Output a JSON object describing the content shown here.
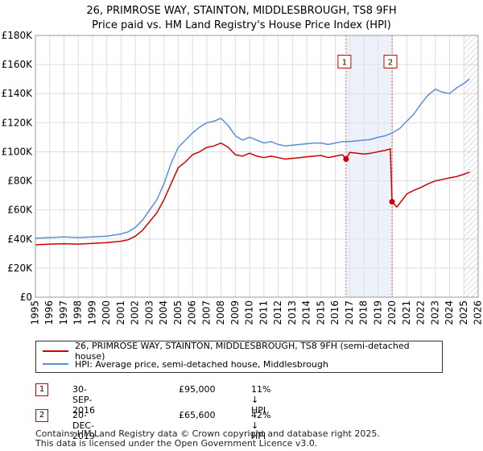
{
  "chart_data": {
    "type": "line",
    "title": "26, PRIMROSE WAY, STAINTON, MIDDLESBROUGH, TS8 9FH",
    "subtitle": "Price paid vs. HM Land Registry's House Price Index (HPI)",
    "xlabel": "",
    "ylabel": "",
    "xlim": [
      1995,
      2026
    ],
    "ylim": [
      0,
      180000
    ],
    "y_ticks": [
      0,
      20000,
      40000,
      60000,
      80000,
      100000,
      120000,
      140000,
      160000,
      180000
    ],
    "y_tick_labels": [
      "£0",
      "£20K",
      "£40K",
      "£60K",
      "£80K",
      "£100K",
      "£120K",
      "£140K",
      "£160K",
      "£180K"
    ],
    "x_ticks": [
      1995,
      1996,
      1997,
      1998,
      1999,
      2000,
      2001,
      2002,
      2003,
      2004,
      2005,
      2006,
      2007,
      2008,
      2009,
      2010,
      2011,
      2012,
      2013,
      2014,
      2015,
      2016,
      2017,
      2018,
      2019,
      2020,
      2021,
      2022,
      2023,
      2024,
      2025,
      2026
    ],
    "x_tick_labels": [
      "1995",
      "1996",
      "1997",
      "1998",
      "1999",
      "2000",
      "2001",
      "2002",
      "2003",
      "2004",
      "2005",
      "2006",
      "2007",
      "2008",
      "2009",
      "2010",
      "2011",
      "2012",
      "2013",
      "2014",
      "2015",
      "2016",
      "2017",
      "2018",
      "2019",
      "2020",
      "2021",
      "2022",
      "2023",
      "2024",
      "2025",
      "2026"
    ],
    "grid": true,
    "future_hatch_from": 2025.0,
    "shaded_span": [
      2016.75,
      2019.97
    ],
    "series": [
      {
        "name": "26, PRIMROSE WAY, STAINTON, MIDDLESBROUGH, TS8 9FH (semi-detached house)",
        "color": "#cc0000",
        "x": [
          1995.0,
          1996.0,
          1997.0,
          1998.0,
          1999.0,
          2000.0,
          2001.0,
          2001.5,
          2002.0,
          2002.5,
          2003.0,
          2003.5,
          2004.0,
          2004.5,
          2005.0,
          2005.5,
          2006.0,
          2006.5,
          2007.0,
          2007.5,
          2008.0,
          2008.5,
          2009.0,
          2009.5,
          2010.0,
          2010.5,
          2011.0,
          2011.5,
          2012.0,
          2012.5,
          2013.0,
          2013.5,
          2014.0,
          2014.5,
          2015.0,
          2015.5,
          2016.0,
          2016.5,
          2016.75,
          2017.0,
          2017.5,
          2018.0,
          2018.5,
          2019.0,
          2019.5,
          2019.85,
          2019.97,
          2020.3,
          2020.7,
          2021.0,
          2021.5,
          2022.0,
          2022.5,
          2023.0,
          2023.5,
          2024.0,
          2024.5,
          2025.0,
          2025.4
        ],
        "values": [
          36000,
          36500,
          36800,
          36500,
          37000,
          37500,
          38500,
          39500,
          42000,
          46000,
          52000,
          58000,
          67000,
          78000,
          89000,
          93000,
          98000,
          100000,
          103000,
          104000,
          106000,
          103000,
          98000,
          97000,
          99000,
          97000,
          96000,
          97000,
          96000,
          95000,
          95500,
          96000,
          96500,
          97000,
          97500,
          96000,
          97000,
          98000,
          95000,
          99500,
          99000,
          98500,
          99000,
          100000,
          101000,
          102000,
          65600,
          62000,
          67000,
          71000,
          73500,
          75500,
          78000,
          80000,
          81000,
          82000,
          83000,
          84500,
          86000
        ]
      },
      {
        "name": "HPI: Average price, semi-detached house, Middlesbrough",
        "color": "#5b8fd6",
        "x": [
          1995.0,
          1996.0,
          1997.0,
          1998.0,
          1999.0,
          2000.0,
          2001.0,
          2001.5,
          2002.0,
          2002.5,
          2003.0,
          2003.5,
          2004.0,
          2004.5,
          2005.0,
          2005.5,
          2006.0,
          2006.5,
          2007.0,
          2007.5,
          2008.0,
          2008.5,
          2009.0,
          2009.5,
          2010.0,
          2010.5,
          2011.0,
          2011.5,
          2012.0,
          2012.5,
          2013.0,
          2013.5,
          2014.0,
          2014.5,
          2015.0,
          2015.5,
          2016.0,
          2016.5,
          2017.0,
          2017.5,
          2018.0,
          2018.5,
          2019.0,
          2019.5,
          2020.0,
          2020.5,
          2021.0,
          2021.5,
          2022.0,
          2022.5,
          2023.0,
          2023.5,
          2024.0,
          2024.5,
          2025.0,
          2025.4
        ],
        "values": [
          40500,
          41000,
          41500,
          41000,
          41500,
          42000,
          43500,
          45000,
          48000,
          53000,
          60000,
          67000,
          78000,
          92000,
          103000,
          108000,
          113000,
          117000,
          120000,
          121000,
          123000,
          118000,
          111000,
          108000,
          110000,
          108000,
          106000,
          107000,
          105000,
          104000,
          104500,
          105000,
          105500,
          106000,
          106000,
          105000,
          106000,
          107000,
          107000,
          107500,
          108000,
          108500,
          110000,
          111000,
          113000,
          116000,
          121000,
          126000,
          133000,
          139000,
          143000,
          141000,
          140000,
          144000,
          147000,
          150000
        ]
      }
    ],
    "markers": [
      {
        "id": "1",
        "x": 2016.75,
        "value": 95000
      },
      {
        "id": "2",
        "x": 2019.97,
        "value": 65600
      }
    ],
    "marker_label_value": 162000
  },
  "legend": {
    "items": [
      {
        "label": "26, PRIMROSE WAY, STAINTON, MIDDLESBROUGH, TS8 9FH (semi-detached house)",
        "color": "#cc0000"
      },
      {
        "label": "HPI: Average price, semi-detached house, Middlesbrough",
        "color": "#5b8fd6"
      }
    ]
  },
  "transactions": [
    {
      "id": "1",
      "date": "30-SEP-2016",
      "price": "£95,000",
      "hpi": "11% ↓ HPI"
    },
    {
      "id": "2",
      "date": "20-DEC-2019",
      "price": "£65,600",
      "hpi": "42% ↓ HPI"
    }
  ],
  "footer": {
    "line1": "Contains HM Land Registry data © Crown copyright and database right 2025.",
    "line2": "This data is licensed under the Open Government Licence v3.0."
  }
}
